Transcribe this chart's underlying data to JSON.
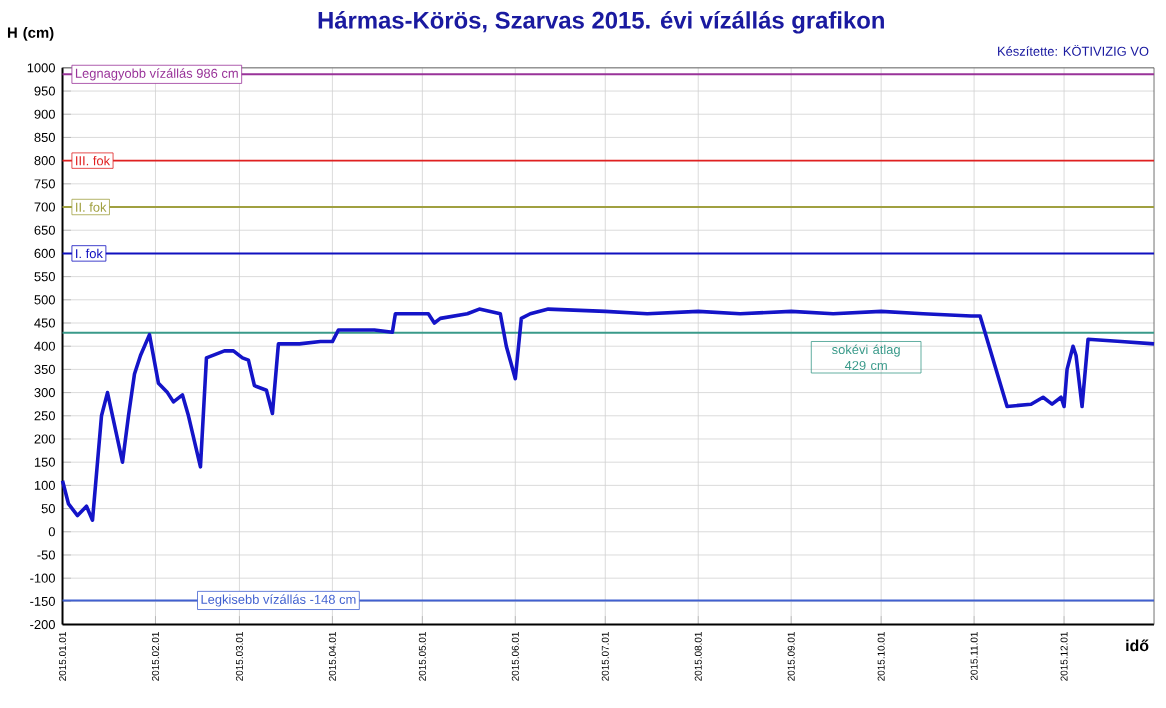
{
  "chart_data": {
    "type": "line",
    "title": "Hármas-Körös, Szarvas 2015. évi vízállás grafikon",
    "xlabel": "idő",
    "ylabel": "H (cm)",
    "annotations": [
      "Készítette: KÖTIVIZIG VO"
    ],
    "xlim": [
      "2015-01-01",
      "2015-12-31"
    ],
    "xticks": [
      {
        "value": "2015-01-01",
        "label": "2015.01.01"
      },
      {
        "value": "2015-02-01",
        "label": "2015.02.01"
      },
      {
        "value": "2015-03-01",
        "label": "2015.03.01"
      },
      {
        "value": "2015-04-01",
        "label": "2015.04.01"
      },
      {
        "value": "2015-05-01",
        "label": "2015.05.01"
      },
      {
        "value": "2015-06-01",
        "label": "2015.06.01"
      },
      {
        "value": "2015-07-01",
        "label": "2015.07.01"
      },
      {
        "value": "2015-08-01",
        "label": "2015.08.01"
      },
      {
        "value": "2015-09-01",
        "label": "2015.09.01"
      },
      {
        "value": "2015-10-01",
        "label": "2015.10.01"
      },
      {
        "value": "2015-11-01",
        "label": "2015.11.01"
      },
      {
        "value": "2015-12-01",
        "label": "2015.12.01"
      }
    ],
    "ylim": [
      -200,
      1000
    ],
    "yticks": [
      -200,
      -150,
      -100,
      -50,
      0,
      50,
      100,
      150,
      200,
      250,
      300,
      350,
      400,
      450,
      500,
      550,
      600,
      650,
      700,
      750,
      800,
      850,
      900,
      950,
      1000
    ],
    "grid": true,
    "marker": "none",
    "line_style": "solid",
    "ref_lines": [
      {
        "axis": "y",
        "value": 986,
        "label": "Legnagyobb vízállás 986 cm",
        "color": "#993399"
      },
      {
        "axis": "y",
        "value": 800,
        "label": "III. fok",
        "color": "#e02020"
      },
      {
        "axis": "y",
        "value": 700,
        "label": "II. fok",
        "color": "#a0a040"
      },
      {
        "axis": "y",
        "value": 600,
        "label": "I. fok",
        "color": "#1010c0"
      },
      {
        "axis": "y",
        "value": 429,
        "label": "sokévi átlag 429 cm",
        "color": "#3a9a8a"
      },
      {
        "axis": "y",
        "value": -148,
        "label": "Legkisebb vízállás -148 cm",
        "color": "#4060d0"
      }
    ],
    "series": [
      {
        "color": "#1414c8",
        "x": [
          "2015-01-01",
          "2015-01-03",
          "2015-01-06",
          "2015-01-09",
          "2015-01-11",
          "2015-01-14",
          "2015-01-16",
          "2015-01-21",
          "2015-01-23",
          "2015-01-25",
          "2015-01-27",
          "2015-01-30",
          "2015-02-02",
          "2015-02-05",
          "2015-02-07",
          "2015-02-10",
          "2015-02-12",
          "2015-02-16",
          "2015-02-18",
          "2015-02-24",
          "2015-02-27",
          "2015-03-02",
          "2015-03-04",
          "2015-03-06",
          "2015-03-10",
          "2015-03-12",
          "2015-03-14",
          "2015-03-21",
          "2015-03-28",
          "2015-04-01",
          "2015-04-03",
          "2015-04-15",
          "2015-04-21",
          "2015-04-22",
          "2015-04-28",
          "2015-05-03",
          "2015-05-05",
          "2015-05-07",
          "2015-05-16",
          "2015-05-20",
          "2015-05-27",
          "2015-05-29",
          "2015-06-01",
          "2015-06-03",
          "2015-06-06",
          "2015-06-12",
          "2015-07-01",
          "2015-07-15",
          "2015-08-01",
          "2015-08-15",
          "2015-09-01",
          "2015-09-15",
          "2015-10-01",
          "2015-10-15",
          "2015-10-31",
          "2015-11-03",
          "2015-11-12",
          "2015-11-20",
          "2015-11-24",
          "2015-11-27",
          "2015-11-30",
          "2015-12-01",
          "2015-12-02",
          "2015-12-04",
          "2015-12-05",
          "2015-12-07",
          "2015-12-09",
          "2015-12-20",
          "2015-12-31"
        ],
        "values": [
          110,
          60,
          35,
          55,
          25,
          250,
          300,
          150,
          250,
          340,
          380,
          425,
          320,
          300,
          280,
          295,
          250,
          140,
          375,
          390,
          390,
          375,
          370,
          315,
          305,
          255,
          405,
          405,
          410,
          410,
          435,
          435,
          430,
          470,
          470,
          470,
          450,
          460,
          470,
          480,
          470,
          400,
          330,
          460,
          470,
          480,
          475,
          470,
          475,
          470,
          475,
          470,
          475,
          470,
          465,
          465,
          270,
          275,
          290,
          275,
          290,
          270,
          350,
          400,
          380,
          270,
          415,
          410,
          405
        ]
      }
    ]
  }
}
